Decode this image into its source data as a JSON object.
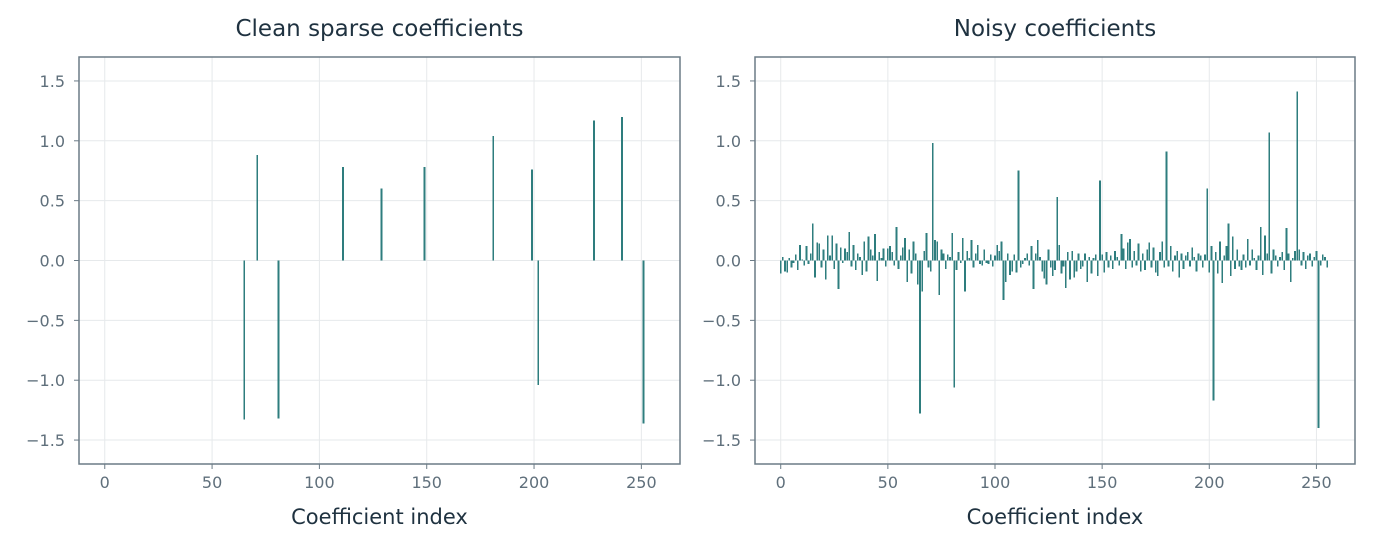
{
  "chart_data": [
    {
      "type": "bar",
      "title": "Clean sparse coefficients",
      "xlabel": "Coefficient index",
      "ylabel": "",
      "xlim": [
        -12,
        268
      ],
      "ylim": [
        -1.7,
        1.7
      ],
      "xticks": [
        0,
        50,
        100,
        150,
        200,
        250
      ],
      "yticks": [
        1.5,
        1.0,
        0.5,
        0.0,
        -0.5,
        -1.0,
        -1.5
      ],
      "ytick_labels": [
        "1.5",
        "1.0",
        "0.5",
        "0.0",
        "−0.5",
        "−1.0",
        "−1.5"
      ],
      "grid": true,
      "color": "#2e7d7e",
      "n_coefficients": 256,
      "points": [
        [
          65,
          -1.33
        ],
        [
          71,
          0.88
        ],
        [
          81,
          -1.32
        ],
        [
          111,
          0.78
        ],
        [
          129,
          0.6
        ],
        [
          149,
          0.78
        ],
        [
          181,
          1.04
        ],
        [
          199,
          0.76
        ],
        [
          202,
          -1.04
        ],
        [
          228,
          1.17
        ],
        [
          241,
          1.2
        ],
        [
          251,
          -1.36
        ]
      ]
    },
    {
      "type": "bar",
      "title": "Noisy coefficients",
      "xlabel": "Coefficient index",
      "ylabel": "",
      "xlim": [
        -12,
        268
      ],
      "ylim": [
        -1.7,
        1.7
      ],
      "xticks": [
        0,
        50,
        100,
        150,
        200,
        250
      ],
      "yticks": [
        1.5,
        1.0,
        0.5,
        0.0,
        -0.5,
        -1.0,
        -1.5
      ],
      "ytick_labels": [
        "1.5",
        "1.0",
        "0.5",
        "0.0",
        "−0.5",
        "−1.0",
        "−1.5"
      ],
      "grid": true,
      "color": "#2e7d7e",
      "values": [
        -0.11,
        0.03,
        -0.09,
        -0.1,
        0.02,
        -0.06,
        -0.02,
        0.05,
        -0.08,
        0.13,
        0.01,
        -0.04,
        0.12,
        -0.03,
        0.06,
        0.31,
        -0.14,
        0.15,
        0.14,
        -0.06,
        0.09,
        -0.16,
        0.21,
        0.04,
        0.21,
        -0.07,
        0.14,
        -0.24,
        0.11,
        -0.02,
        0.1,
        0.07,
        0.24,
        -0.05,
        0.13,
        -0.08,
        0.06,
        0.03,
        -0.12,
        0.16,
        -0.09,
        0.2,
        0.09,
        0.04,
        0.22,
        -0.17,
        0.07,
        0.02,
        0.1,
        -0.05,
        0.1,
        0.12,
        0.07,
        -0.04,
        0.28,
        -0.07,
        0.04,
        0.11,
        0.19,
        -0.18,
        0.09,
        -0.11,
        0.16,
        0.06,
        -0.2,
        -1.28,
        -0.26,
        0.08,
        0.23,
        -0.06,
        -0.09,
        0.98,
        0.17,
        0.16,
        -0.29,
        0.09,
        0.06,
        -0.07,
        0.05,
        0.03,
        0.23,
        -1.06,
        -0.08,
        0.07,
        -0.02,
        0.19,
        -0.26,
        0.08,
        0.02,
        0.17,
        -0.06,
        0.06,
        0.13,
        -0.03,
        -0.04,
        0.09,
        -0.02,
        -0.03,
        0.05,
        -0.05,
        0.04,
        0.13,
        0.08,
        0.16,
        -0.33,
        -0.18,
        0.06,
        -0.12,
        -0.09,
        0.05,
        -0.1,
        0.75,
        -0.06,
        -0.03,
        0.02,
        0.06,
        -0.04,
        0.12,
        -0.24,
        0.06,
        0.17,
        0.03,
        -0.09,
        -0.15,
        -0.2,
        0.09,
        -0.06,
        -0.13,
        -0.08,
        0.53,
        0.13,
        -0.11,
        -0.05,
        -0.23,
        0.07,
        -0.16,
        0.08,
        -0.14,
        -0.09,
        0.06,
        -0.07,
        -0.05,
        0.06,
        -0.18,
        0.03,
        -0.11,
        0.02,
        0.05,
        -0.13,
        0.67,
        0.05,
        -0.1,
        0.07,
        -0.06,
        0.04,
        -0.07,
        0.08,
        0.03,
        -0.04,
        0.22,
        0.1,
        -0.07,
        0.15,
        0.18,
        -0.06,
        0.08,
        -0.04,
        0.14,
        -0.09,
        0.06,
        -0.08,
        0.09,
        0.15,
        -0.06,
        0.11,
        -0.1,
        -0.13,
        0.07,
        0.16,
        -0.06,
        0.91,
        -0.05,
        0.12,
        -0.09,
        0.04,
        0.08,
        -0.14,
        0.06,
        -0.07,
        0.04,
        0.07,
        -0.05,
        0.11,
        0.03,
        -0.09,
        0.06,
        0.04,
        -0.06,
        0.05,
        0.6,
        -0.1,
        0.12,
        -1.17,
        0.07,
        -0.11,
        0.16,
        -0.19,
        0.04,
        0.12,
        0.31,
        -0.13,
        0.2,
        -0.07,
        0.09,
        -0.05,
        -0.08,
        0.05,
        -0.06,
        0.18,
        -0.04,
        0.09,
        0.02,
        -0.08,
        0.04,
        0.28,
        -0.12,
        0.21,
        0.06,
        1.07,
        -0.11,
        0.09,
        0.04,
        -0.05,
        0.03,
        0.07,
        -0.08,
        0.27,
        0.06,
        -0.18,
        0.02,
        0.08,
        1.41,
        0.09,
        -0.04,
        0.07,
        -0.07,
        0.04,
        0.06,
        -0.05,
        0.03,
        0.08,
        -1.4,
        -0.04,
        0.05,
        0.03,
        -0.06
      ]
    }
  ]
}
